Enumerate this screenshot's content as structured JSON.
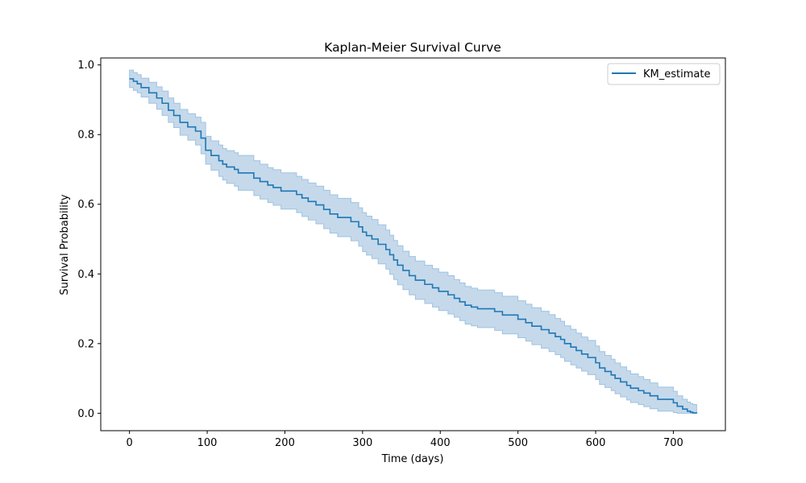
{
  "chart_data": {
    "type": "line",
    "title": "Kaplan-Meier Survival Curve",
    "xlabel": "Time (days)",
    "ylabel": "Survival Probability",
    "xlim": [
      -37,
      767
    ],
    "ylim": [
      -0.05,
      1.02
    ],
    "xticks": [
      0,
      100,
      200,
      300,
      400,
      500,
      600,
      700
    ],
    "yticks": [
      0.0,
      0.2,
      0.4,
      0.6,
      0.8,
      1.0
    ],
    "ytick_labels": [
      "0.0",
      "0.2",
      "0.4",
      "0.6",
      "0.8",
      "1.0"
    ],
    "grid": false,
    "legend": {
      "position": "top-right",
      "entries": [
        "KM_estimate"
      ]
    },
    "colors": {
      "line": "#1f77b4",
      "band": "#c5d9eb",
      "band_edge": "#9ec2e0"
    },
    "series": [
      {
        "name": "KM_estimate",
        "style": "step",
        "x": [
          0,
          5,
          10,
          15,
          25,
          35,
          42,
          50,
          57,
          65,
          75,
          85,
          92,
          98,
          105,
          115,
          120,
          125,
          135,
          140,
          160,
          168,
          178,
          185,
          195,
          215,
          222,
          230,
          240,
          250,
          258,
          268,
          285,
          295,
          300,
          305,
          312,
          320,
          330,
          335,
          340,
          345,
          352,
          360,
          368,
          380,
          390,
          398,
          410,
          418,
          425,
          432,
          440,
          448,
          458,
          470,
          480,
          500,
          510,
          518,
          530,
          540,
          548,
          555,
          560,
          568,
          575,
          582,
          590,
          600,
          605,
          612,
          620,
          625,
          632,
          640,
          645,
          655,
          662,
          670,
          680,
          700,
          705,
          712,
          718,
          722,
          725,
          730
        ],
        "survival": [
          0.96,
          0.953,
          0.946,
          0.935,
          0.92,
          0.905,
          0.89,
          0.87,
          0.855,
          0.835,
          0.822,
          0.81,
          0.79,
          0.755,
          0.74,
          0.725,
          0.715,
          0.707,
          0.7,
          0.69,
          0.675,
          0.665,
          0.655,
          0.648,
          0.638,
          0.628,
          0.618,
          0.608,
          0.598,
          0.585,
          0.572,
          0.562,
          0.55,
          0.535,
          0.52,
          0.51,
          0.5,
          0.485,
          0.47,
          0.455,
          0.44,
          0.425,
          0.41,
          0.395,
          0.382,
          0.37,
          0.36,
          0.35,
          0.34,
          0.33,
          0.32,
          0.31,
          0.305,
          0.3,
          0.3,
          0.292,
          0.282,
          0.27,
          0.26,
          0.25,
          0.24,
          0.23,
          0.22,
          0.212,
          0.2,
          0.19,
          0.18,
          0.17,
          0.16,
          0.145,
          0.13,
          0.12,
          0.11,
          0.1,
          0.09,
          0.08,
          0.072,
          0.065,
          0.058,
          0.05,
          0.04,
          0.03,
          0.02,
          0.012,
          0.006,
          0.003,
          0.001,
          0.0
        ],
        "ci_upper": [
          0.985,
          0.978,
          0.972,
          0.962,
          0.95,
          0.937,
          0.925,
          0.905,
          0.89,
          0.872,
          0.86,
          0.85,
          0.835,
          0.795,
          0.782,
          0.77,
          0.76,
          0.754,
          0.748,
          0.74,
          0.725,
          0.715,
          0.705,
          0.699,
          0.69,
          0.68,
          0.671,
          0.661,
          0.652,
          0.64,
          0.627,
          0.617,
          0.605,
          0.59,
          0.576,
          0.566,
          0.556,
          0.541,
          0.526,
          0.511,
          0.496,
          0.481,
          0.465,
          0.45,
          0.437,
          0.425,
          0.415,
          0.405,
          0.395,
          0.384,
          0.374,
          0.364,
          0.359,
          0.354,
          0.354,
          0.346,
          0.336,
          0.323,
          0.313,
          0.303,
          0.293,
          0.283,
          0.272,
          0.264,
          0.251,
          0.241,
          0.23,
          0.219,
          0.209,
          0.193,
          0.177,
          0.166,
          0.155,
          0.144,
          0.133,
          0.122,
          0.113,
          0.105,
          0.097,
          0.087,
          0.075,
          0.063,
          0.05,
          0.04,
          0.032,
          0.028,
          0.025,
          0.022
        ],
        "ci_lower": [
          0.935,
          0.927,
          0.92,
          0.908,
          0.89,
          0.873,
          0.855,
          0.835,
          0.82,
          0.798,
          0.784,
          0.77,
          0.745,
          0.715,
          0.698,
          0.68,
          0.67,
          0.66,
          0.652,
          0.64,
          0.625,
          0.615,
          0.605,
          0.597,
          0.586,
          0.576,
          0.565,
          0.555,
          0.544,
          0.53,
          0.517,
          0.507,
          0.495,
          0.48,
          0.464,
          0.454,
          0.444,
          0.429,
          0.414,
          0.399,
          0.384,
          0.369,
          0.355,
          0.34,
          0.327,
          0.315,
          0.305,
          0.295,
          0.285,
          0.276,
          0.266,
          0.256,
          0.251,
          0.246,
          0.246,
          0.238,
          0.228,
          0.217,
          0.207,
          0.197,
          0.187,
          0.177,
          0.168,
          0.16,
          0.149,
          0.139,
          0.13,
          0.121,
          0.111,
          0.097,
          0.083,
          0.074,
          0.065,
          0.056,
          0.047,
          0.038,
          0.031,
          0.025,
          0.019,
          0.013,
          0.006,
          0.002,
          0.0,
          0.0,
          0.0,
          0.0,
          0.0,
          0.0
        ]
      }
    ]
  }
}
